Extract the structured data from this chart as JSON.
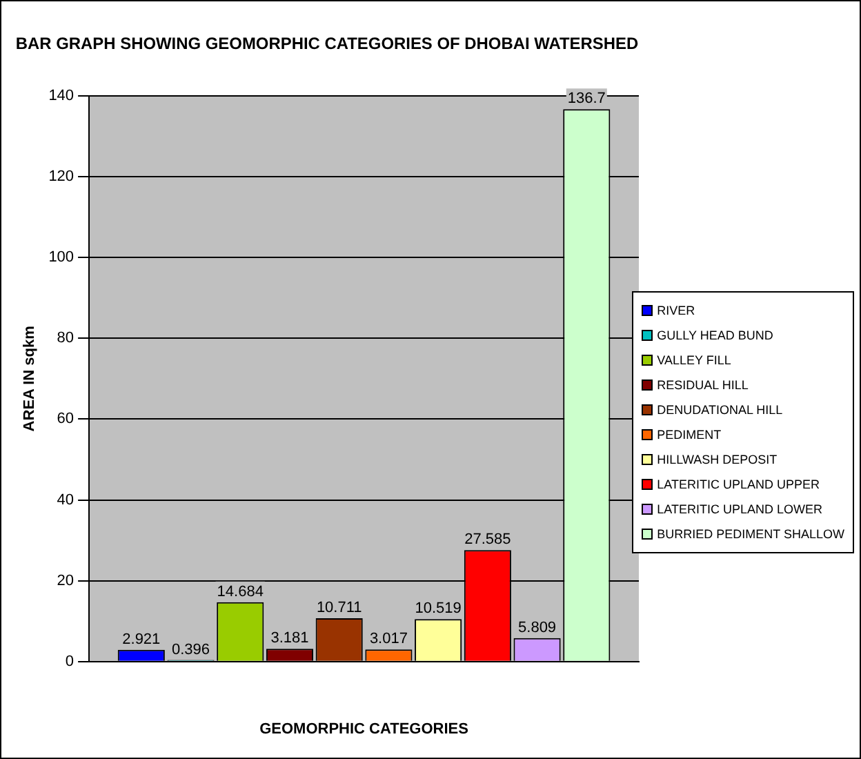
{
  "chart_data": {
    "type": "bar",
    "title": "BAR GRAPH SHOWING GEOMORPHIC CATEGORIES OF DHOBAI WATERSHED",
    "xlabel": "GEOMORPHIC CATEGORIES",
    "ylabel": "AREA IN sqkm",
    "categories": [
      null
    ],
    "series": [
      {
        "name": "RIVER",
        "color": "#0000ff",
        "values": [
          2.921
        ]
      },
      {
        "name": "GULLY HEAD BUND",
        "color": "#00c0c0",
        "values": [
          0.396
        ]
      },
      {
        "name": "VALLEY FILL",
        "color": "#99cc00",
        "values": [
          14.684
        ]
      },
      {
        "name": "RESIDUAL HILL",
        "color": "#800000",
        "values": [
          3.181
        ]
      },
      {
        "name": "DENUDATIONAL HILL",
        "color": "#993300",
        "values": [
          10.711
        ]
      },
      {
        "name": "PEDIMENT",
        "color": "#ff6600",
        "values": [
          3.017
        ]
      },
      {
        "name": "HILLWASH DEPOSIT",
        "color": "#ffff99",
        "values": [
          10.519
        ]
      },
      {
        "name": "LATERITIC UPLAND UPPER",
        "color": "#ff0000",
        "values": [
          27.585
        ]
      },
      {
        "name": "LATERITIC UPLAND LOWER",
        "color": "#cc99ff",
        "values": [
          5.809
        ]
      },
      {
        "name": "BURRIED PEDIMENT SHALLOW",
        "color": "#ccffcc",
        "values": [
          136.7
        ]
      }
    ],
    "ylim": [
      0,
      140
    ],
    "yticks": [
      0,
      20,
      40,
      60,
      80,
      100,
      120,
      140
    ],
    "grid": "y",
    "legend": "right",
    "data_labels": true
  }
}
